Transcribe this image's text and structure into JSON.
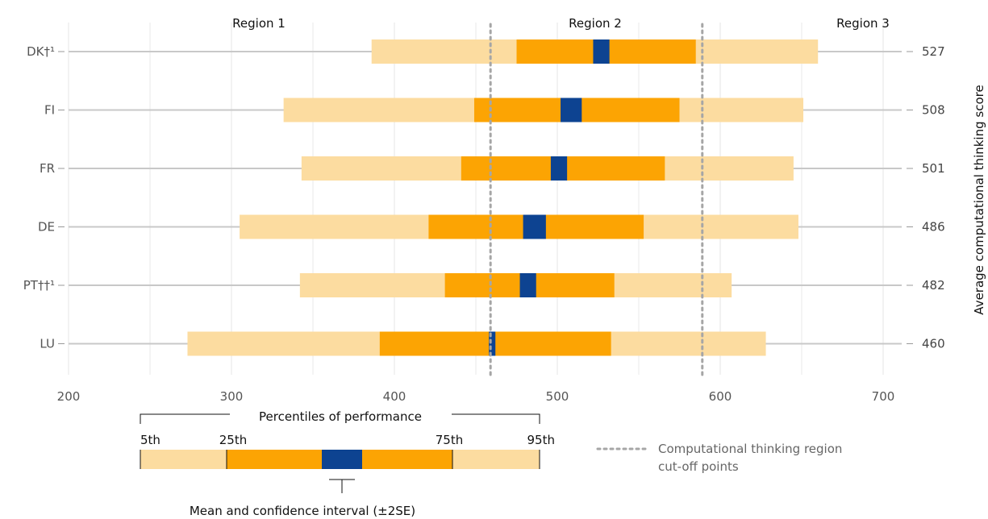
{
  "chart_data": {
    "type": "bar",
    "subtype": "percentile-range",
    "regions": [
      "Region 1",
      "Region 2",
      "Region 3"
    ],
    "cutoffs": [
      459,
      589
    ],
    "x": {
      "ticks": [
        200,
        300,
        400,
        500,
        600,
        700
      ],
      "xlim": [
        200,
        715
      ]
    },
    "y_right_label": "Average computational thinking score",
    "countries": [
      {
        "label": "DK†¹",
        "p5": 386,
        "p25": 475,
        "mean_lo": 522,
        "mean_hi": 532,
        "p75": 585,
        "p95": 660,
        "score": "527"
      },
      {
        "label": "FI",
        "p5": 332,
        "p25": 449,
        "mean_lo": 502,
        "mean_hi": 515,
        "p75": 575,
        "p95": 651,
        "score": "508"
      },
      {
        "label": "FR",
        "p5": 343,
        "p25": 441,
        "mean_lo": 496,
        "mean_hi": 506,
        "p75": 566,
        "p95": 645,
        "score": "501"
      },
      {
        "label": "DE",
        "p5": 305,
        "p25": 421,
        "mean_lo": 479,
        "mean_hi": 493,
        "p75": 553,
        "p95": 648,
        "score": "486"
      },
      {
        "label": "PT††¹",
        "p5": 342,
        "p25": 431,
        "mean_lo": 477,
        "mean_hi": 487,
        "p75": 535,
        "p95": 607,
        "score": "482"
      },
      {
        "label": "LU",
        "p5": 273,
        "p25": 391,
        "mean_lo": 458,
        "mean_hi": 462,
        "p75": 533,
        "p95": 628,
        "score": "460"
      }
    ],
    "colors": {
      "outer": "#fcdca0",
      "inner": "#fca403",
      "mean": "#0d4391",
      "whisker": "#c8c8c8",
      "grid": "#e9e9e9",
      "cutoff": "#a6a6a6"
    }
  },
  "legend": {
    "percentiles_title": "Percentiles of performance",
    "p5": "5th",
    "p25": "25th",
    "p75": "75th",
    "p95": "95th",
    "mean_label": "Mean and confidence interval (±2SE)",
    "cutoff_label_line1": "Computational thinking region",
    "cutoff_label_line2": "cut-off points"
  }
}
